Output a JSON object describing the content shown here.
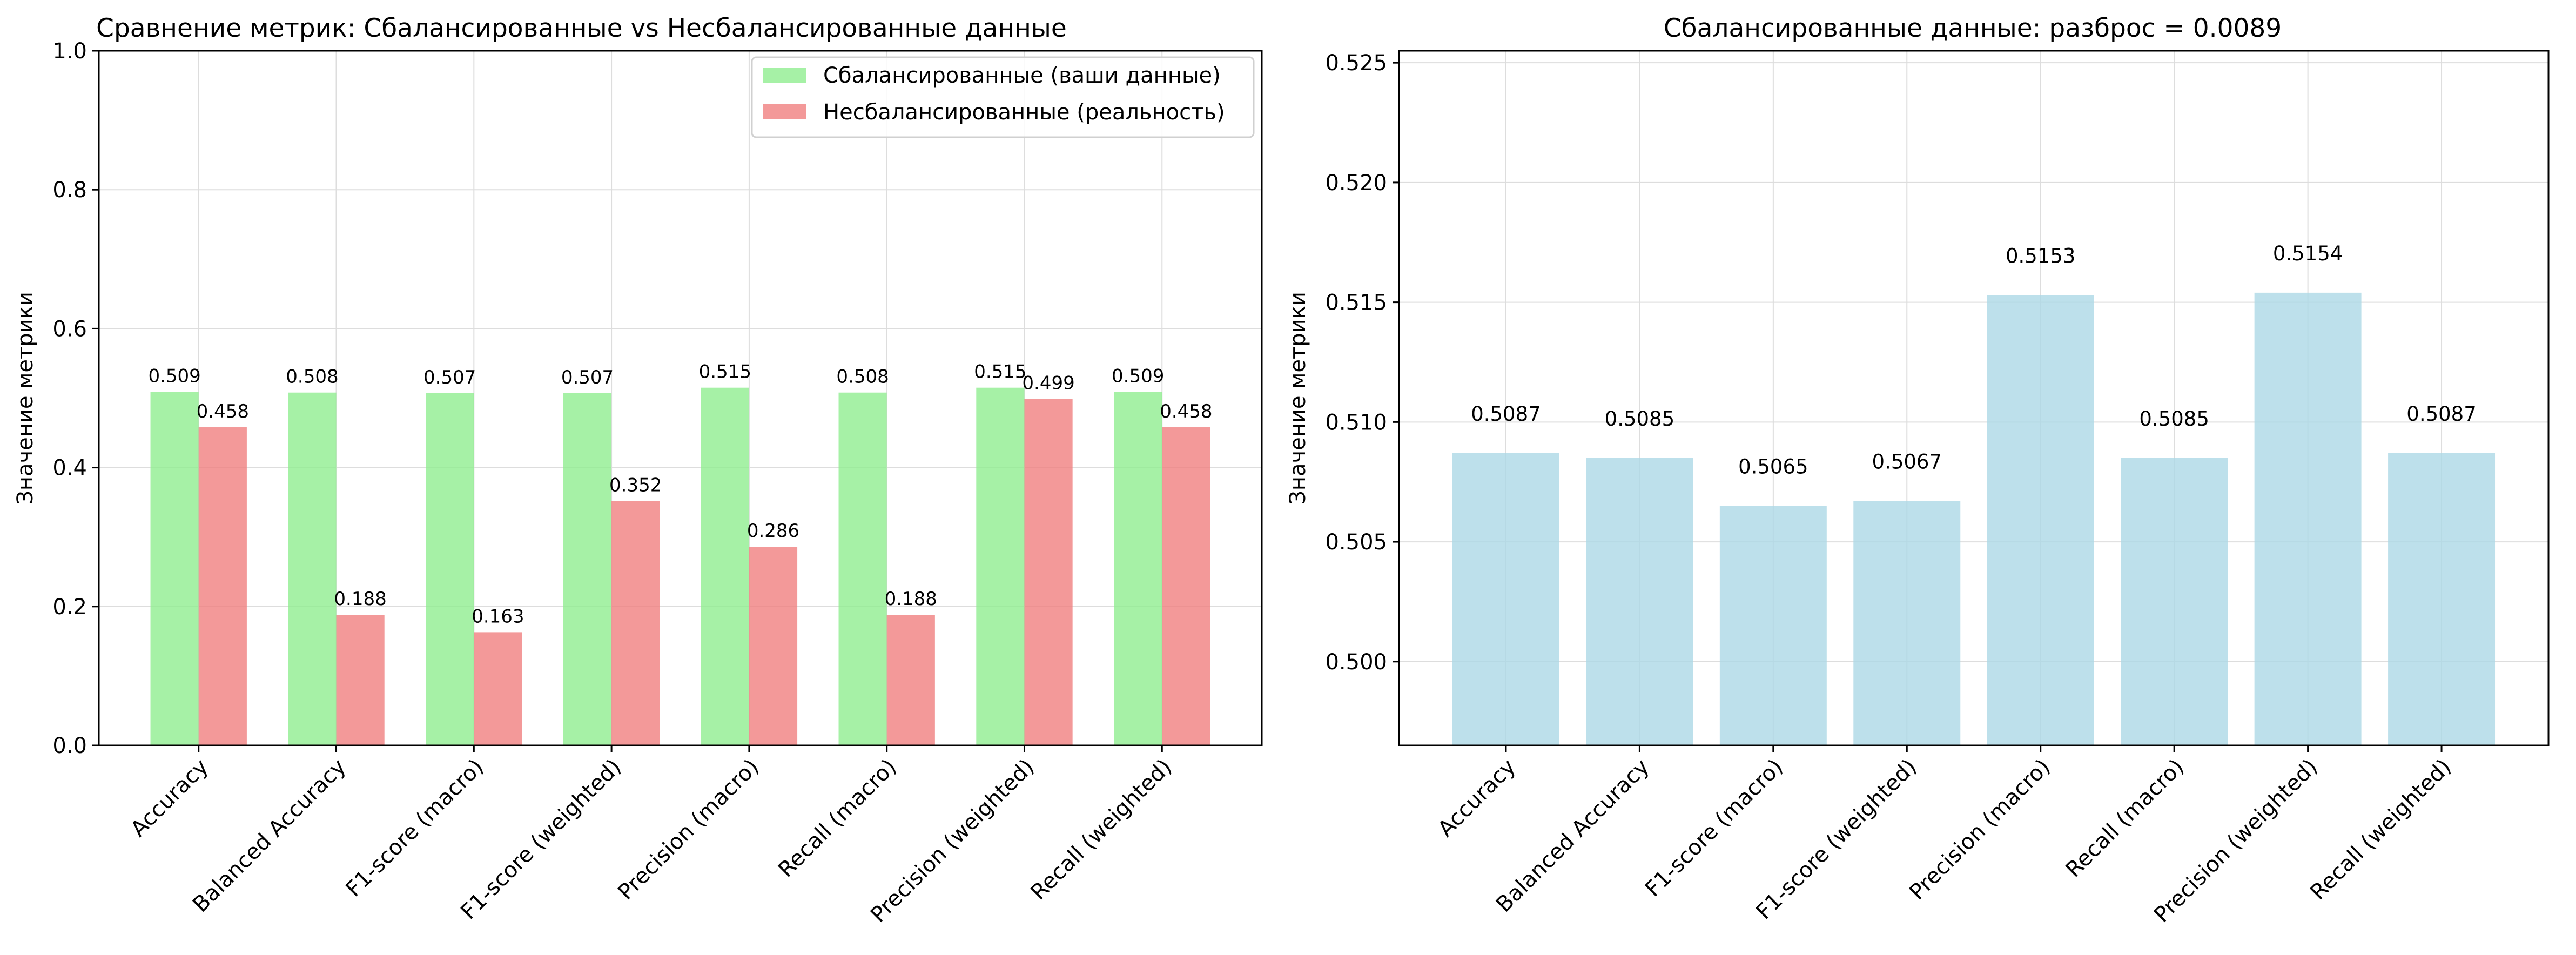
{
  "chart_data": [
    {
      "type": "bar",
      "title": "Сравнение метрик: Сбалансированные vs Несбалансированные данные",
      "xlabel": "",
      "ylabel": "Значение метрики",
      "ylim": [
        0,
        1.0
      ],
      "yticks": [
        "0.0",
        "0.2",
        "0.4",
        "0.6",
        "0.8",
        "1.0"
      ],
      "grid": true,
      "legend_position": "top-right",
      "categories": [
        "Accuracy",
        "Balanced Accuracy",
        "F1-score (macro)",
        "F1-score (weighted)",
        "Precision (macro)",
        "Recall (macro)",
        "Precision (weighted)",
        "Recall (weighted)"
      ],
      "series": [
        {
          "name": "Сбалансированные (ваши данные)",
          "color": "#90ee90",
          "values": [
            0.509,
            0.508,
            0.507,
            0.507,
            0.515,
            0.508,
            0.515,
            0.509
          ],
          "labels": [
            "0.509",
            "0.508",
            "0.507",
            "0.507",
            "0.515",
            "0.508",
            "0.515",
            "0.509"
          ]
        },
        {
          "name": "Несбалансированные (реальность)",
          "color": "#f08080",
          "values": [
            0.458,
            0.188,
            0.163,
            0.352,
            0.286,
            0.188,
            0.499,
            0.458
          ],
          "labels": [
            "0.458",
            "0.188",
            "0.163",
            "0.352",
            "0.286",
            "0.188",
            "0.499",
            "0.458"
          ]
        }
      ]
    },
    {
      "type": "bar",
      "title": "Сбалансированные данные: разброс = 0.0089",
      "xlabel": "",
      "ylabel": "Значение метрики",
      "ylim": [
        0.4965,
        0.5255
      ],
      "yticks": [
        "0.500",
        "0.505",
        "0.510",
        "0.515",
        "0.520",
        "0.525"
      ],
      "grid": true,
      "categories": [
        "Accuracy",
        "Balanced Accuracy",
        "F1-score (macro)",
        "F1-score (weighted)",
        "Precision (macro)",
        "Recall (macro)",
        "Precision (weighted)",
        "Recall (weighted)"
      ],
      "series": [
        {
          "color": "#add8e6",
          "values": [
            0.5087,
            0.5085,
            0.5065,
            0.5067,
            0.5153,
            0.5085,
            0.5154,
            0.5087
          ],
          "labels": [
            "0.5087",
            "0.5085",
            "0.5065",
            "0.5067",
            "0.5153",
            "0.5085",
            "0.5154",
            "0.5087"
          ]
        }
      ]
    }
  ]
}
